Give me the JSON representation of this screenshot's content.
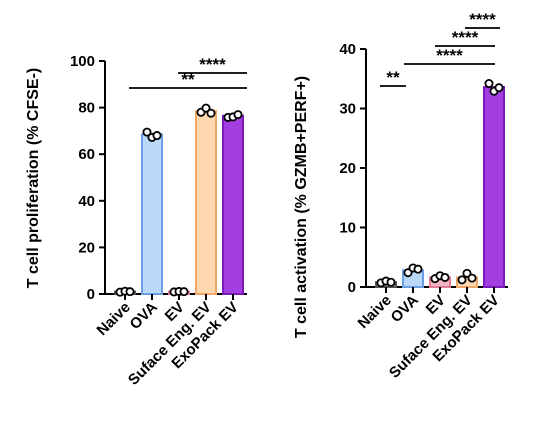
{
  "chart_data": [
    {
      "type": "bar",
      "ylabel": "T cell proliferation (% CFSE-)",
      "ylim": [
        0,
        100
      ],
      "yticks": [
        "0",
        "20",
        "40",
        "60",
        "80",
        "100"
      ],
      "categories": [
        "Naive",
        "OVA",
        "EV",
        "Suface Eng. EV",
        "ExoPack EV"
      ],
      "values": [
        1,
        68.5,
        1,
        78.5,
        76.5
      ],
      "points": [
        [
          0.8,
          1.2,
          1.0
        ],
        [
          69.5,
          67.2,
          68.0
        ],
        [
          0.9,
          1.1,
          1.0
        ],
        [
          78.0,
          79.8,
          77.6
        ],
        [
          75.8,
          76.0,
          77.0
        ]
      ],
      "colors": {
        "fills": [
          "#9a9a9a",
          "#bcd8f8",
          "#f2b6c6",
          "#ffd8b0",
          "#a33ee0"
        ],
        "edges": [
          "#555555",
          "#6a9fe6",
          "#e07a95",
          "#f0a868",
          "#7a1bb8"
        ]
      },
      "significance": [
        {
          "label": "**",
          "from": 1,
          "to": 4,
          "y": 88
        },
        {
          "label": "****",
          "from": 3,
          "to": 4,
          "y": 94
        }
      ]
    },
    {
      "type": "bar",
      "ylabel": "T cell activation (% GZMB+PERF+)",
      "ylim": [
        0,
        40
      ],
      "yticks": [
        "0",
        "10",
        "20",
        "30",
        "40"
      ],
      "categories": [
        "Naive",
        "OVA",
        "EV",
        "Suface Eng. EV",
        "ExoPack EV"
      ],
      "values": [
        0.8,
        2.8,
        1.6,
        1.6,
        33.6
      ],
      "points": [
        [
          0.7,
          1.0,
          0.8
        ],
        [
          2.4,
          3.2,
          3.0
        ],
        [
          1.4,
          1.9,
          1.6
        ],
        [
          1.2,
          2.3,
          1.5
        ],
        [
          34.2,
          32.9,
          33.5
        ]
      ],
      "colors": {
        "fills": [
          "#9a9a9a",
          "#bcd8f8",
          "#f2b6c6",
          "#ffd8b0",
          "#a33ee0"
        ],
        "edges": [
          "#555555",
          "#6a9fe6",
          "#e07a95",
          "#f0a868",
          "#7a1bb8"
        ]
      },
      "significance": [
        {
          "label": "**",
          "from": 0,
          "to": 1,
          "y": 34
        },
        {
          "label": "****",
          "from": 1,
          "to": 4,
          "y": 37.5
        },
        {
          "label": "****",
          "from": 3,
          "to": 4,
          "y": 40.5
        },
        {
          "label": "****",
          "from": 4,
          "to": 5,
          "y": 43.5
        }
      ]
    }
  ]
}
